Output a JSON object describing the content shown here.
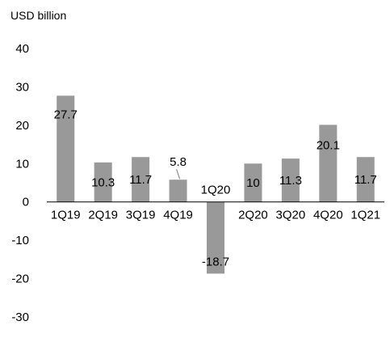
{
  "chart_data": {
    "type": "bar",
    "title": "",
    "ylabel": "USD  billion",
    "xlabel": "",
    "categories": [
      "1Q19",
      "2Q19",
      "3Q19",
      "4Q19",
      "1Q20",
      "2Q20",
      "3Q20",
      "4Q20",
      "1Q21"
    ],
    "values": [
      27.7,
      10.3,
      11.7,
      5.8,
      -18.7,
      10,
      11.3,
      20.1,
      11.7
    ],
    "data_labels": [
      "27.7",
      "10.3",
      "11.7",
      "5.8",
      "-18.7",
      "10",
      "11.3",
      "20.1",
      "11.7"
    ],
    "ylim": [
      -30,
      40
    ],
    "yticks": [
      40,
      30,
      20,
      10,
      0,
      -10,
      -20,
      -30
    ],
    "ytick_labels": [
      "40",
      "30",
      "20",
      "10",
      "0",
      "-10",
      "-20",
      "-30"
    ],
    "grid": false,
    "legend": "none",
    "bar_color": "#999999"
  }
}
